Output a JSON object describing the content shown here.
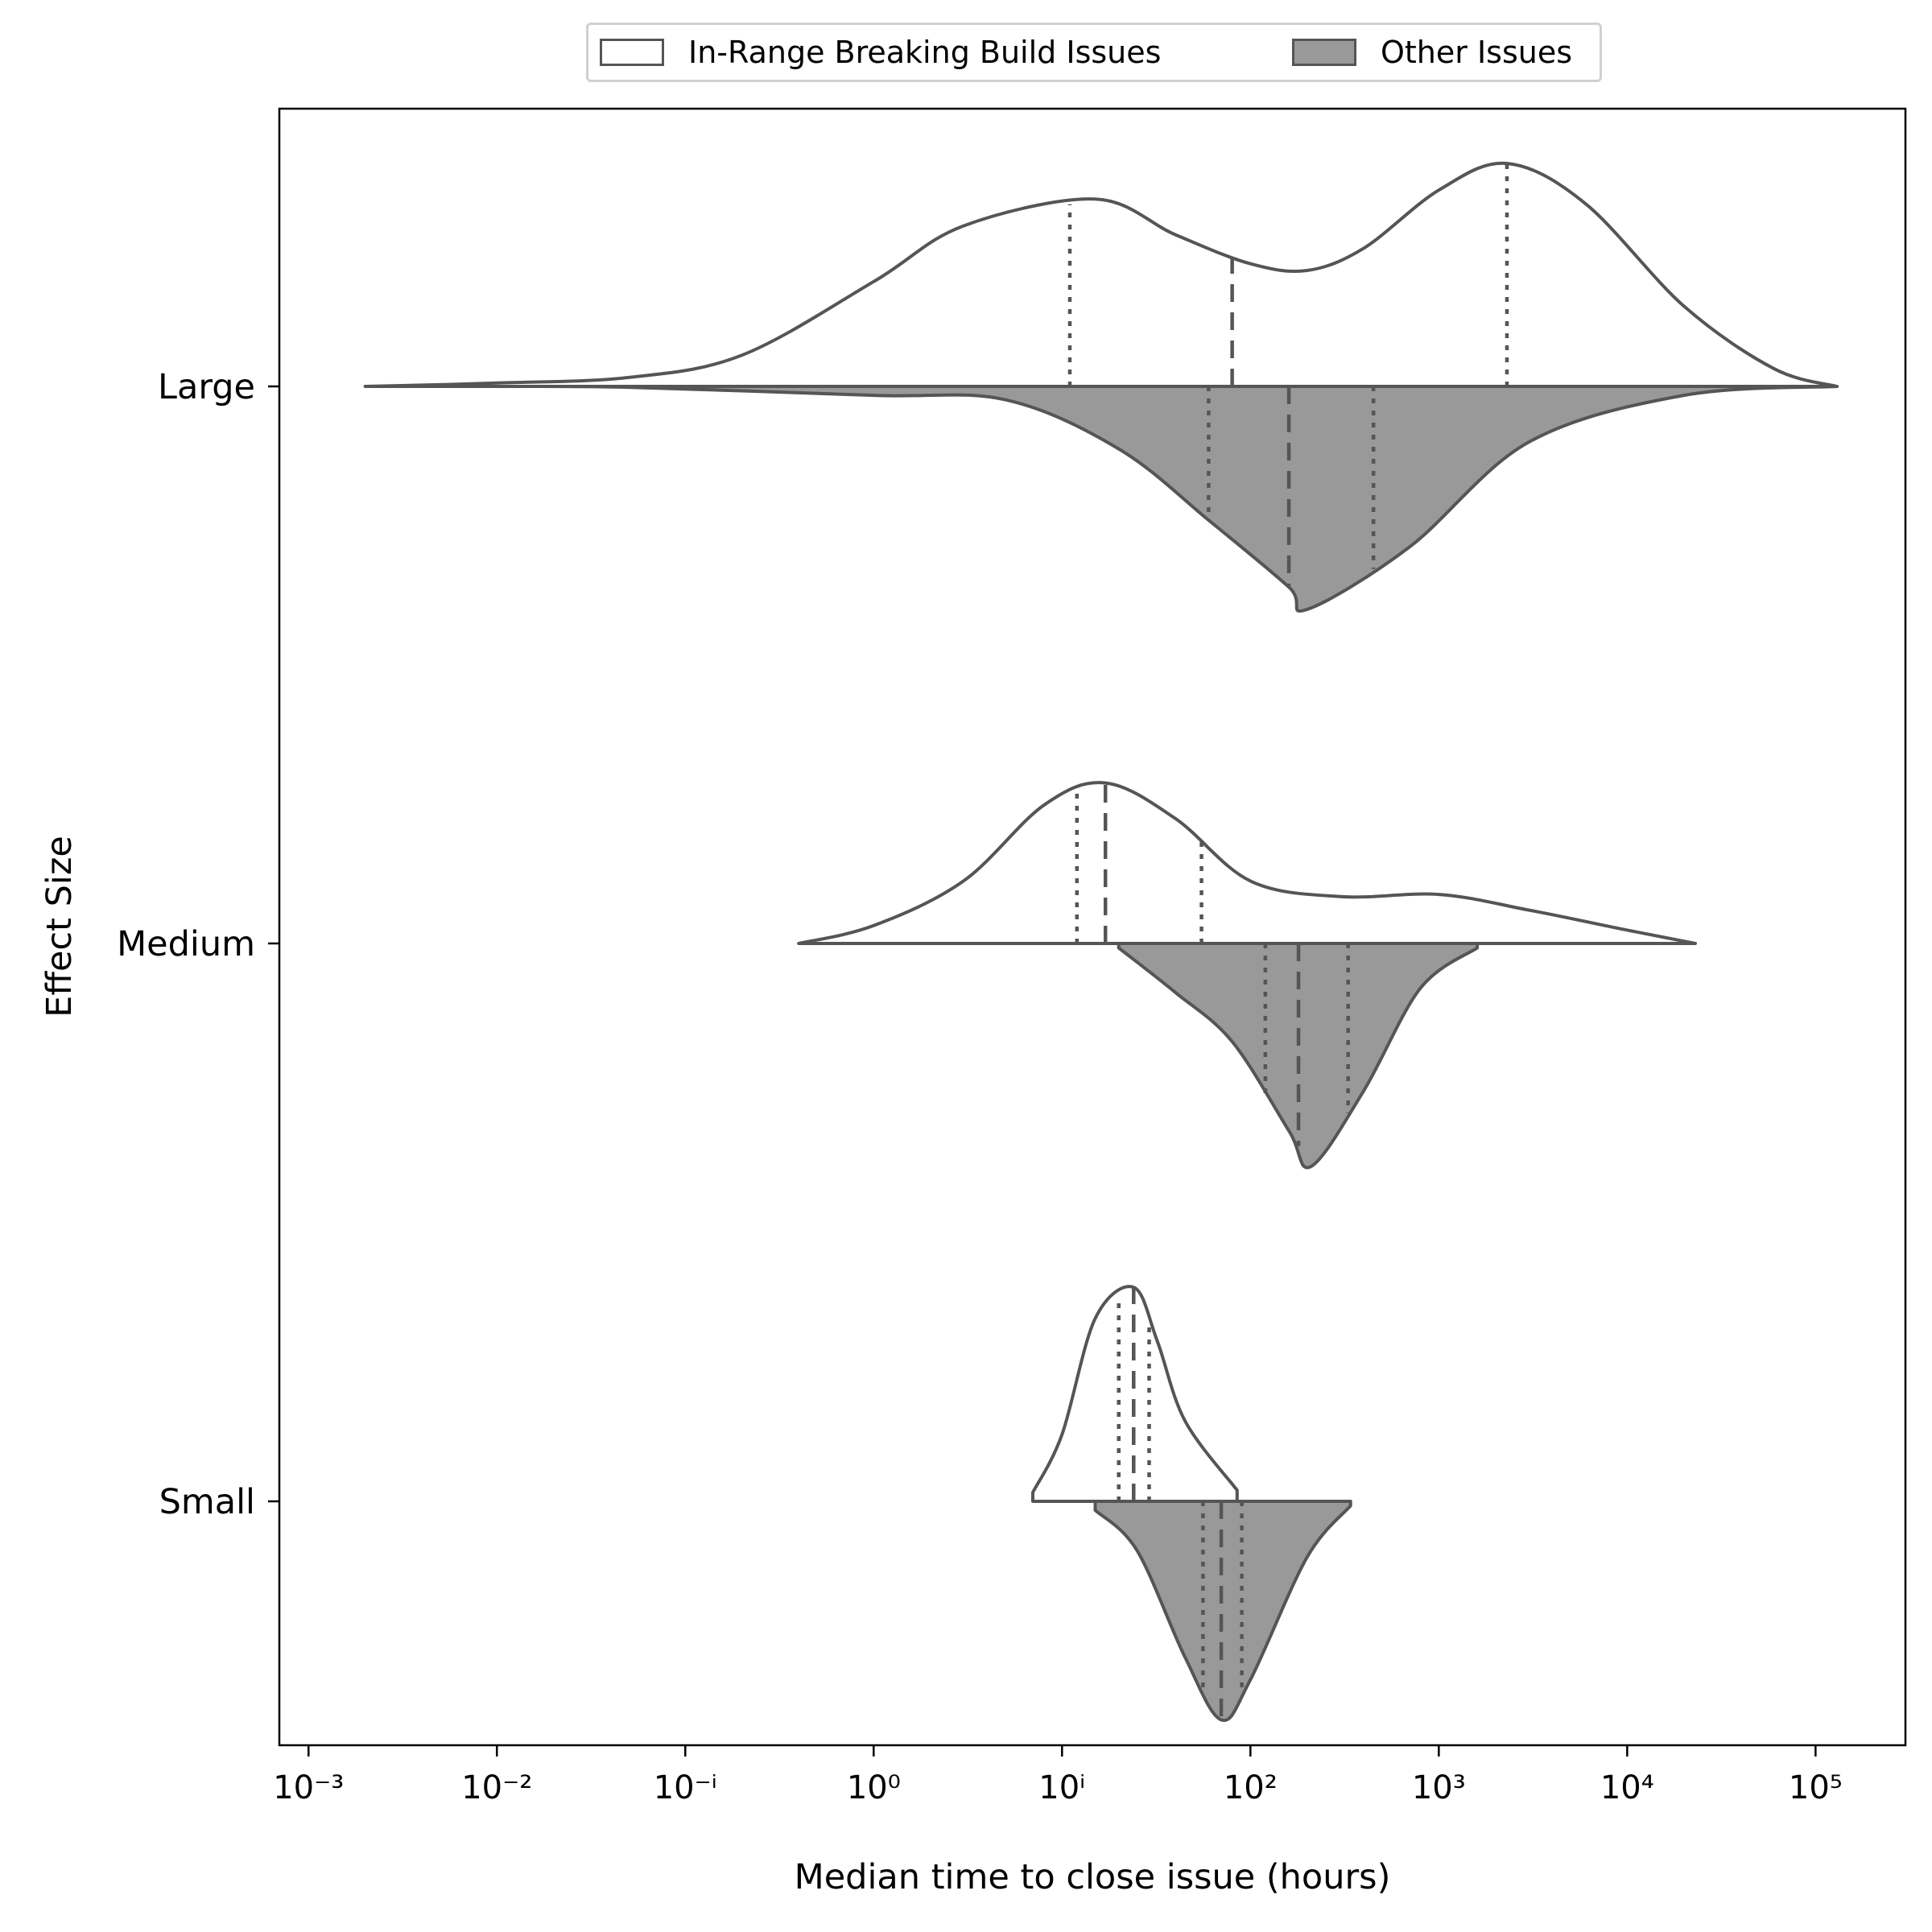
{
  "chart_data": {
    "type": "split-violin",
    "orientation": "horizontal",
    "xlabel": "Median time to close issue (hours)",
    "ylabel": "Effect Size",
    "x_scale": "log",
    "xlim": [
      0.0007,
      300000
    ],
    "x_ticks": [
      {
        "value": 0.001,
        "label": "10⁻³"
      },
      {
        "value": 0.01,
        "label": "10⁻²"
      },
      {
        "value": 0.1,
        "label": "10⁻ⁱ"
      },
      {
        "value": 1,
        "label": "10⁰"
      },
      {
        "value": 10,
        "label": "10ⁱ"
      },
      {
        "value": 100,
        "label": "10²"
      },
      {
        "value": 1000,
        "label": "10³"
      },
      {
        "value": 10000,
        "label": "10⁴"
      },
      {
        "value": 100000,
        "label": "10⁵"
      }
    ],
    "categories": [
      "Large",
      "Medium",
      "Small"
    ],
    "legend": {
      "placement": "top-center, outside plot"
    },
    "series": [
      {
        "name": "In-Range Breaking Build Issues",
        "side": "upper",
        "fill": "#ffffff",
        "groups": [
          {
            "category": "Large",
            "min": 0.002,
            "max": 130000,
            "q1": 11,
            "median": 80,
            "q3": 2300,
            "density": [
              [
                0.002,
                0.0
              ],
              [
                0.01,
                0.015
              ],
              [
                0.05,
                0.04
              ],
              [
                0.2,
                0.14
              ],
              [
                1,
                0.47
              ],
              [
                3,
                0.72
              ],
              [
                15,
                0.84
              ],
              [
                40,
                0.68
              ],
              [
                100,
                0.55
              ],
              [
                200,
                0.52
              ],
              [
                400,
                0.62
              ],
              [
                1000,
                0.88
              ],
              [
                2300,
                1.0
              ],
              [
                6000,
                0.82
              ],
              [
                20000,
                0.36
              ],
              [
                60000,
                0.08
              ],
              [
                130000,
                0.0
              ]
            ]
          },
          {
            "category": "Medium",
            "min": 0.4,
            "max": 23000,
            "q1": 12,
            "median": 17,
            "q3": 55,
            "density": [
              [
                0.4,
                0.0
              ],
              [
                1,
                0.08
              ],
              [
                3,
                0.28
              ],
              [
                8,
                0.62
              ],
              [
                17,
                0.72
              ],
              [
                40,
                0.56
              ],
              [
                100,
                0.28
              ],
              [
                300,
                0.21
              ],
              [
                1000,
                0.22
              ],
              [
                3000,
                0.15
              ],
              [
                10000,
                0.06
              ],
              [
                23000,
                0.0
              ]
            ]
          },
          {
            "category": "Small",
            "min": 7,
            "max": 85,
            "q1": 20,
            "median": 24,
            "q3": 29,
            "density": [
              [
                7,
                0.04
              ],
              [
                10,
                0.3
              ],
              [
                15,
                0.82
              ],
              [
                24,
                0.96
              ],
              [
                32,
                0.72
              ],
              [
                45,
                0.36
              ],
              [
                85,
                0.05
              ]
            ]
          }
        ]
      },
      {
        "name": "Other Issues",
        "side": "lower",
        "fill": "#999999",
        "groups": [
          {
            "category": "Large",
            "min": 0.01,
            "max": 130000,
            "q1": 60,
            "median": 160,
            "q3": 450,
            "density": [
              [
                0.01,
                0.0
              ],
              [
                0.05,
                0.004
              ],
              [
                1,
                0.04
              ],
              [
                5,
                0.06
              ],
              [
                20,
                0.28
              ],
              [
                60,
                0.6
              ],
              [
                160,
                0.9
              ],
              [
                200,
                1.0
              ],
              [
                700,
                0.72
              ],
              [
                3000,
                0.25
              ],
              [
                20000,
                0.04
              ],
              [
                130000,
                0.0
              ]
            ]
          },
          {
            "category": "Medium",
            "min": 20,
            "max": 1600,
            "q1": 120,
            "median": 180,
            "q3": 330,
            "density": [
              [
                20,
                0.02
              ],
              [
                40,
                0.22
              ],
              [
                80,
                0.44
              ],
              [
                160,
                0.84
              ],
              [
                210,
                1.0
              ],
              [
                400,
                0.66
              ],
              [
                800,
                0.2
              ],
              [
                1600,
                0.02
              ]
            ]
          },
          {
            "category": "Small",
            "min": 15,
            "max": 340,
            "q1": 56,
            "median": 70,
            "q3": 90,
            "density": [
              [
                15,
                0.04
              ],
              [
                25,
                0.22
              ],
              [
                45,
                0.7
              ],
              [
                70,
                0.98
              ],
              [
                100,
                0.8
              ],
              [
                200,
                0.25
              ],
              [
                340,
                0.02
              ]
            ]
          }
        ]
      }
    ]
  },
  "legend_labels": [
    "In-Range Breaking Build Issues",
    "Other Issues"
  ],
  "colors": {
    "outline": "#555555",
    "upper_fill": "#ffffff",
    "lower_fill": "#999999"
  }
}
